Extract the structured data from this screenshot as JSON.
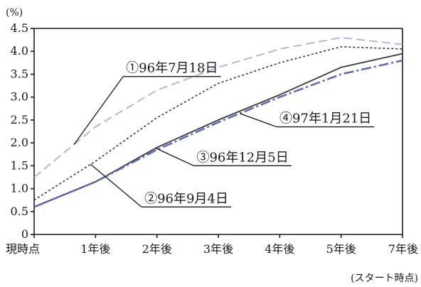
{
  "chart_data": {
    "type": "line",
    "title": "",
    "y_unit": "(%)",
    "x_note": "(スタート時点)",
    "xlabel": "",
    "ylabel": "",
    "categories": [
      "現時点",
      "1年後",
      "2年後",
      "3年後",
      "4年後",
      "5年後",
      "7年後"
    ],
    "ylim": [
      0,
      4.5
    ],
    "yticks": [
      "0",
      "0.5",
      "1.0",
      "1.5",
      "2.0",
      "2.5",
      "3.0",
      "3.5",
      "4.0",
      "4.5"
    ],
    "grid": false,
    "legend": "none",
    "series": [
      {
        "name": "①96年7月18日",
        "values": [
          1.25,
          2.35,
          3.15,
          3.65,
          4.05,
          4.3,
          4.15
        ],
        "color": "#a8b3e3",
        "dash": "dash"
      },
      {
        "name": "②96年9月4日",
        "values": [
          0.75,
          1.6,
          2.55,
          3.3,
          3.75,
          4.1,
          4.05
        ],
        "color": "#3a3a3a",
        "dash": "dot"
      },
      {
        "name": "③96年12月5日",
        "values": [
          0.6,
          1.15,
          1.9,
          2.5,
          3.05,
          3.65,
          3.95
        ],
        "color": "#3a3a3a",
        "dash": "solid"
      },
      {
        "name": "④97年1月21日",
        "values": [
          0.6,
          1.15,
          1.85,
          2.45,
          3.0,
          3.5,
          3.8
        ],
        "color": "#5a6ac0",
        "dash": "dashdot"
      }
    ],
    "annotations": [
      {
        "series_index": 0,
        "text": "①96年7月18日",
        "at_category": 0.65,
        "label_at": [
          1.45,
          3.45
        ]
      },
      {
        "series_index": 1,
        "text": "②96年9月4日",
        "at_category": 0.92,
        "label_at": [
          1.75,
          0.6
        ]
      },
      {
        "series_index": 2,
        "text": "③96年12月5日",
        "at_category": 1.98,
        "label_at": [
          2.6,
          1.5
        ]
      },
      {
        "series_index": 3,
        "text": "④97年1月21日",
        "at_category": 3.35,
        "label_at": [
          3.95,
          2.35
        ]
      }
    ]
  }
}
